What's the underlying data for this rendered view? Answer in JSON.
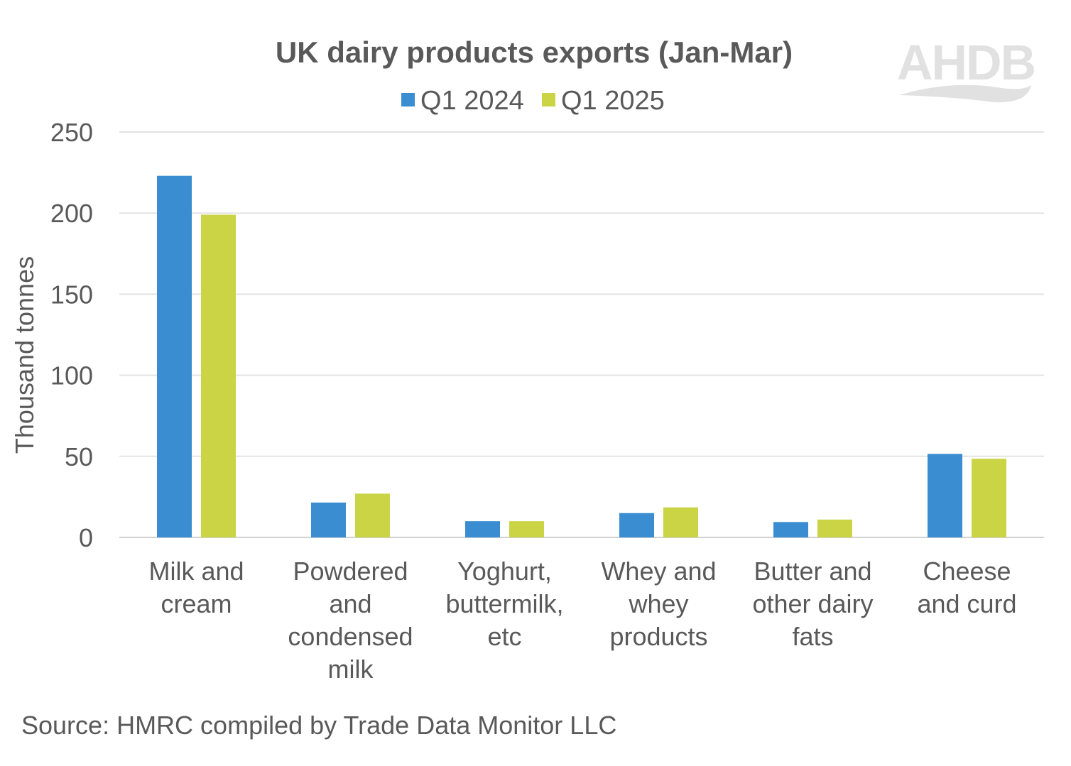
{
  "logo": {
    "text": "AHDB"
  },
  "source": "Source: HMRC compiled by Trade Data Monitor LLC",
  "chart_data": {
    "type": "bar",
    "title": "UK dairy products exports (Jan-Mar)",
    "xlabel": "",
    "ylabel": "Thousand tonnes",
    "ylim": [
      0,
      250
    ],
    "yticks": [
      0,
      50,
      100,
      150,
      200,
      250
    ],
    "grid": true,
    "legend_position": "top",
    "categories": [
      [
        "Milk and",
        "cream"
      ],
      [
        "Powdered",
        "and",
        "condensed",
        "milk"
      ],
      [
        "Yoghurt,",
        "buttermilk,",
        "etc"
      ],
      [
        "Whey and",
        "whey",
        "products"
      ],
      [
        "Butter and",
        "other dairy",
        "fats"
      ],
      [
        "Cheese",
        "and curd"
      ]
    ],
    "series": [
      {
        "name": "Q1 2024",
        "color": "#3a8dd0",
        "values": [
          223,
          21.5,
          10,
          15,
          9.5,
          51.5
        ]
      },
      {
        "name": "Q1 2025",
        "color": "#cad444",
        "values": [
          199,
          27,
          10,
          18.5,
          11,
          48.5
        ]
      }
    ]
  }
}
